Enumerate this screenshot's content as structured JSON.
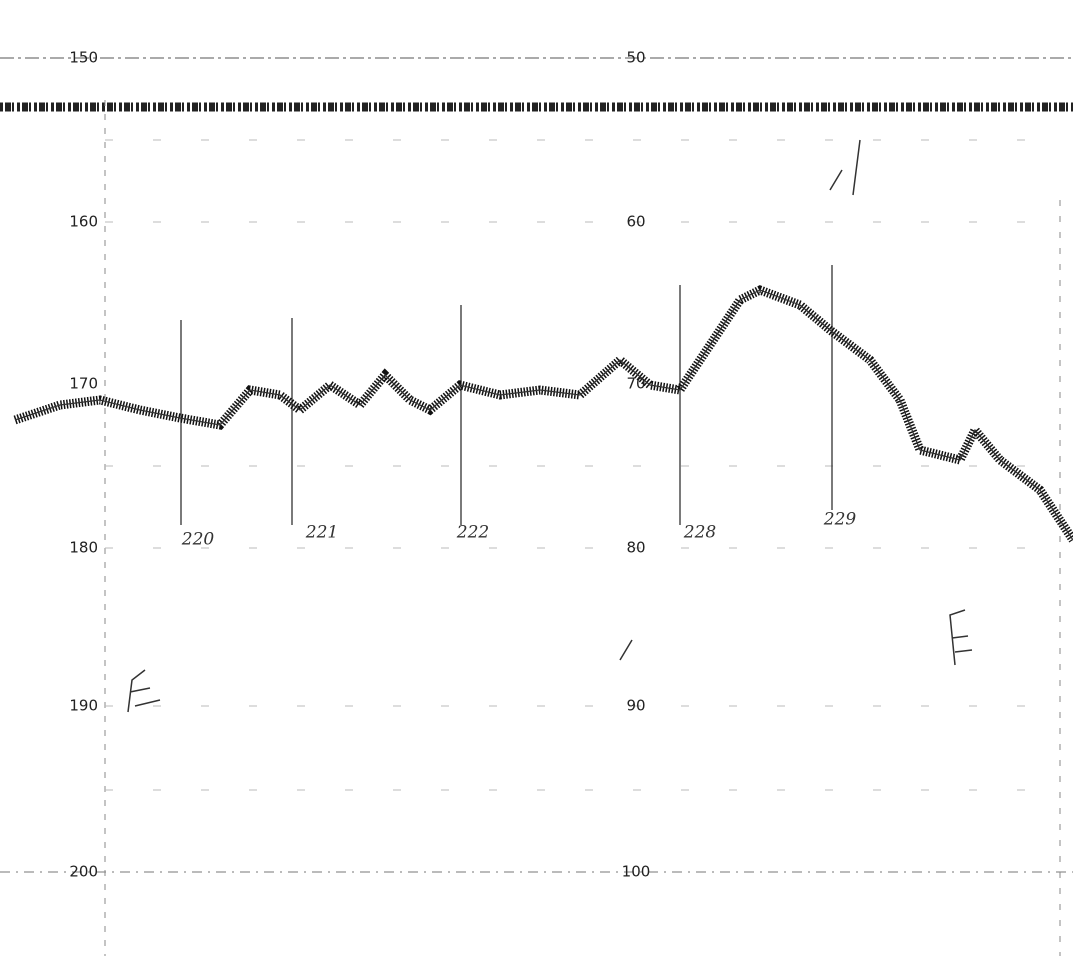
{
  "record": {
    "left_scale": [
      "150",
      "160",
      "170",
      "180",
      "190",
      "200"
    ],
    "middle_scale": [
      "50",
      "60",
      "70",
      "80",
      "90",
      "100"
    ],
    "markers": [
      "220",
      "221",
      "222",
      "228",
      "229"
    ]
  }
}
